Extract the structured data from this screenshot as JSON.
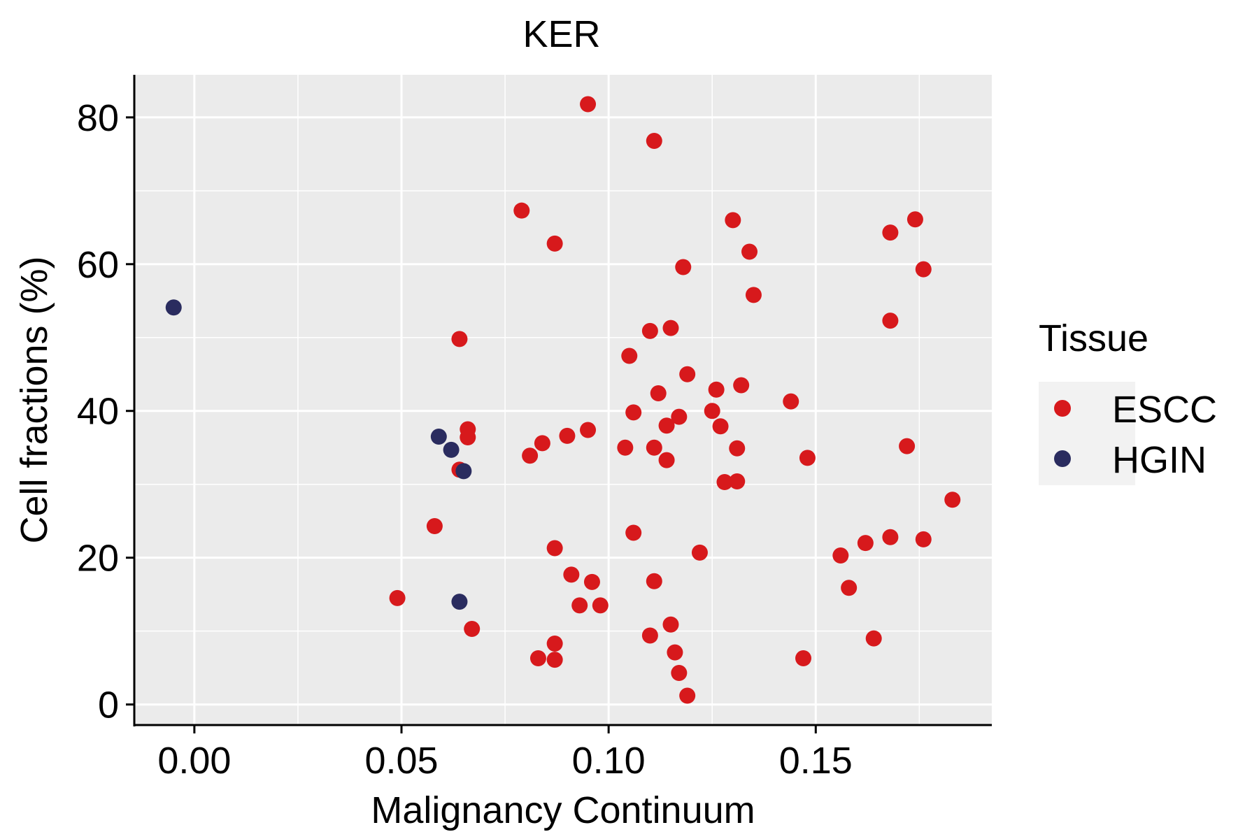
{
  "chart_data": {
    "type": "scatter",
    "title": "KER",
    "xlabel": "Malignancy Continuum",
    "ylabel": "Cell fractions (%)",
    "xlim": [
      -0.0145,
      0.1925
    ],
    "ylim": [
      -2.8,
      85.8
    ],
    "x_ticks": [
      0.0,
      0.05,
      0.1,
      0.15
    ],
    "x_tick_labels": [
      "0.00",
      "0.05",
      "0.10",
      "0.15"
    ],
    "y_ticks": [
      0,
      20,
      40,
      60,
      80
    ],
    "y_tick_labels": [
      "0",
      "20",
      "40",
      "60",
      "80"
    ],
    "grid": true,
    "legend": {
      "title": "Tissue",
      "position": "right",
      "entries": [
        {
          "label": "ESCC",
          "color": "#d7191c"
        },
        {
          "label": "HGIN",
          "color": "#2a2c5f"
        }
      ]
    },
    "series": [
      {
        "name": "ESCC",
        "color": "#d7191c",
        "points": [
          {
            "x": 0.095,
            "y": 81.8
          },
          {
            "x": 0.111,
            "y": 76.8
          },
          {
            "x": 0.079,
            "y": 67.3
          },
          {
            "x": 0.087,
            "y": 62.8
          },
          {
            "x": 0.13,
            "y": 66.0
          },
          {
            "x": 0.134,
            "y": 61.7
          },
          {
            "x": 0.118,
            "y": 59.6
          },
          {
            "x": 0.135,
            "y": 55.8
          },
          {
            "x": 0.168,
            "y": 64.3
          },
          {
            "x": 0.174,
            "y": 66.1
          },
          {
            "x": 0.176,
            "y": 59.3
          },
          {
            "x": 0.168,
            "y": 52.3
          },
          {
            "x": 0.064,
            "y": 49.8
          },
          {
            "x": 0.11,
            "y": 50.9
          },
          {
            "x": 0.115,
            "y": 51.3
          },
          {
            "x": 0.105,
            "y": 47.5
          },
          {
            "x": 0.119,
            "y": 45.0
          },
          {
            "x": 0.112,
            "y": 42.4
          },
          {
            "x": 0.126,
            "y": 42.9
          },
          {
            "x": 0.132,
            "y": 43.5
          },
          {
            "x": 0.144,
            "y": 41.3
          },
          {
            "x": 0.106,
            "y": 39.8
          },
          {
            "x": 0.117,
            "y": 39.2
          },
          {
            "x": 0.114,
            "y": 38.0
          },
          {
            "x": 0.125,
            "y": 40.0
          },
          {
            "x": 0.127,
            "y": 37.9
          },
          {
            "x": 0.095,
            "y": 37.4
          },
          {
            "x": 0.09,
            "y": 36.6
          },
          {
            "x": 0.084,
            "y": 35.6
          },
          {
            "x": 0.081,
            "y": 33.9
          },
          {
            "x": 0.066,
            "y": 37.5
          },
          {
            "x": 0.066,
            "y": 36.4
          },
          {
            "x": 0.104,
            "y": 35.0
          },
          {
            "x": 0.111,
            "y": 35.0
          },
          {
            "x": 0.114,
            "y": 33.3
          },
          {
            "x": 0.131,
            "y": 34.9
          },
          {
            "x": 0.148,
            "y": 33.6
          },
          {
            "x": 0.172,
            "y": 35.2
          },
          {
            "x": 0.064,
            "y": 32.0
          },
          {
            "x": 0.128,
            "y": 30.3
          },
          {
            "x": 0.131,
            "y": 30.4
          },
          {
            "x": 0.183,
            "y": 27.9
          },
          {
            "x": 0.058,
            "y": 24.3
          },
          {
            "x": 0.087,
            "y": 21.3
          },
          {
            "x": 0.106,
            "y": 23.4
          },
          {
            "x": 0.122,
            "y": 20.7
          },
          {
            "x": 0.156,
            "y": 20.3
          },
          {
            "x": 0.162,
            "y": 22.0
          },
          {
            "x": 0.168,
            "y": 22.8
          },
          {
            "x": 0.176,
            "y": 22.5
          },
          {
            "x": 0.049,
            "y": 14.5
          },
          {
            "x": 0.091,
            "y": 17.7
          },
          {
            "x": 0.096,
            "y": 16.7
          },
          {
            "x": 0.111,
            "y": 16.8
          },
          {
            "x": 0.158,
            "y": 15.9
          },
          {
            "x": 0.093,
            "y": 13.5
          },
          {
            "x": 0.098,
            "y": 13.5
          },
          {
            "x": 0.067,
            "y": 10.3
          },
          {
            "x": 0.115,
            "y": 10.9
          },
          {
            "x": 0.11,
            "y": 9.4
          },
          {
            "x": 0.164,
            "y": 9.0
          },
          {
            "x": 0.087,
            "y": 8.3
          },
          {
            "x": 0.083,
            "y": 6.3
          },
          {
            "x": 0.087,
            "y": 6.1
          },
          {
            "x": 0.116,
            "y": 7.1
          },
          {
            "x": 0.147,
            "y": 6.3
          },
          {
            "x": 0.117,
            "y": 4.3
          },
          {
            "x": 0.119,
            "y": 1.2
          }
        ]
      },
      {
        "name": "HGIN",
        "color": "#2a2c5f",
        "points": [
          {
            "x": -0.005,
            "y": 54.1
          },
          {
            "x": 0.059,
            "y": 36.5
          },
          {
            "x": 0.062,
            "y": 34.7
          },
          {
            "x": 0.065,
            "y": 31.8
          },
          {
            "x": 0.064,
            "y": 14.0
          }
        ]
      }
    ]
  }
}
